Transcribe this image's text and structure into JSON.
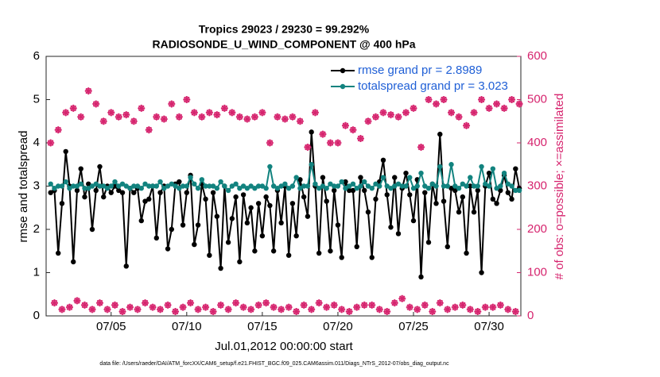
{
  "chart_data": {
    "type": "line",
    "title": "Tropics 29023 / 29230 = 99.292%",
    "subtitle": "RADIOSONDE_U_WIND_COMPONENT @ 400 hPa",
    "x_label": "Jul.01,2012 00:00:00 start",
    "y_label": "rmse and totalspread",
    "y2_label": "# of obs: o=possible; ×=assimilated",
    "footnote": "data file: /Users/raeder/DAI/ATM_forcXX/CAM6_setup/f.e21.FHIST_BGC.f09_025.CAM6assim.011/Diags_NTrS_2012-07/obs_diag_output.nc",
    "legend": "upper right",
    "grid": false,
    "xlim": [
      -0.3,
      31.1
    ],
    "xticks": [
      {
        "value": 4,
        "label": "07/05"
      },
      {
        "value": 9,
        "label": "07/10"
      },
      {
        "value": 14,
        "label": "07/15"
      },
      {
        "value": 19,
        "label": "07/20"
      },
      {
        "value": 24,
        "label": "07/25"
      },
      {
        "value": 29,
        "label": "07/30"
      }
    ],
    "ylim": [
      0,
      6
    ],
    "yticks": [
      0,
      1,
      2,
      3,
      4,
      5,
      6
    ],
    "y2lim": [
      0,
      600
    ],
    "y2ticks": [
      0,
      100,
      200,
      300,
      400,
      500,
      600
    ],
    "x": [
      0,
      0.25,
      0.5,
      0.75,
      1,
      1.25,
      1.5,
      1.75,
      2,
      2.25,
      2.5,
      2.75,
      3,
      3.25,
      3.5,
      3.75,
      4,
      4.25,
      4.5,
      4.75,
      5,
      5.25,
      5.5,
      5.75,
      6,
      6.25,
      6.5,
      6.75,
      7,
      7.25,
      7.5,
      7.75,
      8,
      8.25,
      8.5,
      8.75,
      9,
      9.25,
      9.5,
      9.75,
      10,
      10.25,
      10.5,
      10.75,
      11,
      11.25,
      11.5,
      11.75,
      12,
      12.25,
      12.5,
      12.75,
      13,
      13.25,
      13.5,
      13.75,
      14,
      14.25,
      14.5,
      14.75,
      15,
      15.25,
      15.5,
      15.75,
      16,
      16.25,
      16.5,
      16.75,
      17,
      17.25,
      17.5,
      17.75,
      18,
      18.25,
      18.5,
      18.75,
      19,
      19.25,
      19.5,
      19.75,
      20,
      20.25,
      20.5,
      20.75,
      21,
      21.25,
      21.5,
      21.75,
      22,
      22.25,
      22.5,
      22.75,
      23,
      23.25,
      23.5,
      23.75,
      24,
      24.25,
      24.5,
      24.75,
      25,
      25.25,
      25.5,
      25.75,
      26,
      26.25,
      26.5,
      26.75,
      27,
      27.25,
      27.5,
      27.75,
      28,
      28.25,
      28.5,
      28.75,
      29,
      29.25,
      29.5,
      29.75,
      30,
      30.25,
      30.5,
      30.75,
      31
    ],
    "series": [
      {
        "name": "rmse grand pr = 2.8989",
        "color": "#000000",
        "values": [
          2.85,
          2.9,
          1.45,
          2.6,
          3.8,
          3.0,
          1.25,
          2.9,
          3.4,
          2.75,
          3.05,
          2.0,
          2.9,
          3.45,
          2.75,
          3.0,
          2.85,
          3.0,
          2.9,
          2.85,
          1.15,
          2.95,
          2.85,
          2.95,
          2.2,
          2.65,
          2.7,
          3.0,
          1.8,
          2.85,
          3.0,
          1.55,
          2.0,
          3.05,
          3.1,
          2.1,
          2.85,
          3.25,
          1.65,
          2.1,
          3.05,
          2.7,
          1.4,
          2.85,
          2.3,
          1.1,
          3.0,
          1.7,
          2.25,
          2.75,
          1.25,
          2.8,
          2.15,
          2.5,
          1.5,
          2.6,
          1.85,
          2.75,
          2.55,
          1.5,
          2.9,
          2.15,
          3.0,
          1.4,
          2.6,
          1.85,
          3.15,
          2.75,
          2.3,
          4.25,
          3.0,
          1.45,
          3.2,
          2.65,
          1.5,
          2.9,
          2.1,
          1.35,
          3.1,
          2.9,
          2.9,
          1.6,
          3.2,
          2.9,
          2.4,
          1.35,
          2.7,
          3.1,
          3.6,
          2.8,
          2.05,
          3.2,
          1.9,
          2.95,
          3.3,
          2.8,
          2.2,
          3.15,
          0.9,
          2.85,
          1.7,
          3.05,
          2.6,
          4.2,
          2.65,
          1.6,
          2.95,
          2.9,
          2.4,
          2.75,
          1.45,
          3.0,
          2.4,
          2.9,
          1.0,
          3.0,
          3.3,
          2.7,
          2.6,
          2.9,
          3.25,
          2.85,
          2.7,
          3.4,
          2.95
        ]
      },
      {
        "name": "totalspread grand pr = 3.023",
        "color": "#12837f",
        "values": [
          3.05,
          2.95,
          3.0,
          3.0,
          3.1,
          2.95,
          3.0,
          3.0,
          3.05,
          2.95,
          2.95,
          3.0,
          3.05,
          3.0,
          3.0,
          2.95,
          3.0,
          3.1,
          3.0,
          3.05,
          3.0,
          2.95,
          3.0,
          3.0,
          2.95,
          3.05,
          3.0,
          3.0,
          3.0,
          3.1,
          2.95,
          3.0,
          3.05,
          3.0,
          2.95,
          3.0,
          3.0,
          3.2,
          3.05,
          2.95,
          3.15,
          3.0,
          3.0,
          3.0,
          2.95,
          3.1,
          3.0,
          2.9,
          3.0,
          3.05,
          2.95,
          3.0,
          2.95,
          3.0,
          2.95,
          3.0,
          3.0,
          2.95,
          3.45,
          3.0,
          2.95,
          3.0,
          3.05,
          2.95,
          3.0,
          3.2,
          2.95,
          3.0,
          3.0,
          3.5,
          3.05,
          2.95,
          3.0,
          2.95,
          3.05,
          3.0,
          3.0,
          3.1,
          2.95,
          3.0,
          3.05,
          2.95,
          3.0,
          3.1,
          3.0,
          2.95,
          3.05,
          3.0,
          3.2,
          3.0,
          2.95,
          3.0,
          3.05,
          3.0,
          3.0,
          3.2,
          2.95,
          3.0,
          3.3,
          3.0,
          2.95,
          3.05,
          3.0,
          3.45,
          3.0,
          3.0,
          3.5,
          3.0,
          2.95,
          3.05,
          3.0,
          3.2,
          3.0,
          3.0,
          3.45,
          3.05,
          3.0,
          3.4,
          2.95,
          3.0,
          3.3,
          3.05,
          3.0,
          2.9,
          2.9
        ]
      },
      {
        "color": "#d6246e",
        "axis": "y2",
        "values": [
          400,
          30,
          430,
          15,
          470,
          20,
          480,
          35,
          460,
          25,
          520,
          15,
          490,
          30,
          450,
          15,
          470,
          25,
          460,
          10,
          465,
          20,
          450,
          15,
          480,
          30,
          430,
          20,
          460,
          15,
          455,
          25,
          490,
          10,
          460,
          20,
          500,
          30,
          470,
          15,
          460,
          20,
          470,
          10,
          465,
          25,
          480,
          15,
          470,
          30,
          460,
          20,
          455,
          15,
          460,
          25,
          470,
          30,
          400,
          20,
          460,
          15,
          455,
          20,
          460,
          10,
          450,
          25,
          390,
          15,
          470,
          30,
          420,
          20,
          400,
          25,
          400,
          15,
          440,
          10,
          430,
          20,
          410,
          25,
          450,
          25,
          460,
          15,
          470,
          10,
          465,
          30,
          460,
          40,
          470,
          20,
          480,
          15,
          390,
          25,
          500,
          10,
          490,
          30,
          500,
          15,
          470,
          20,
          460,
          25,
          440,
          15,
          470,
          10,
          500,
          20,
          480,
          20,
          490,
          25,
          480,
          15,
          500,
          10,
          490
        ]
      }
    ]
  }
}
